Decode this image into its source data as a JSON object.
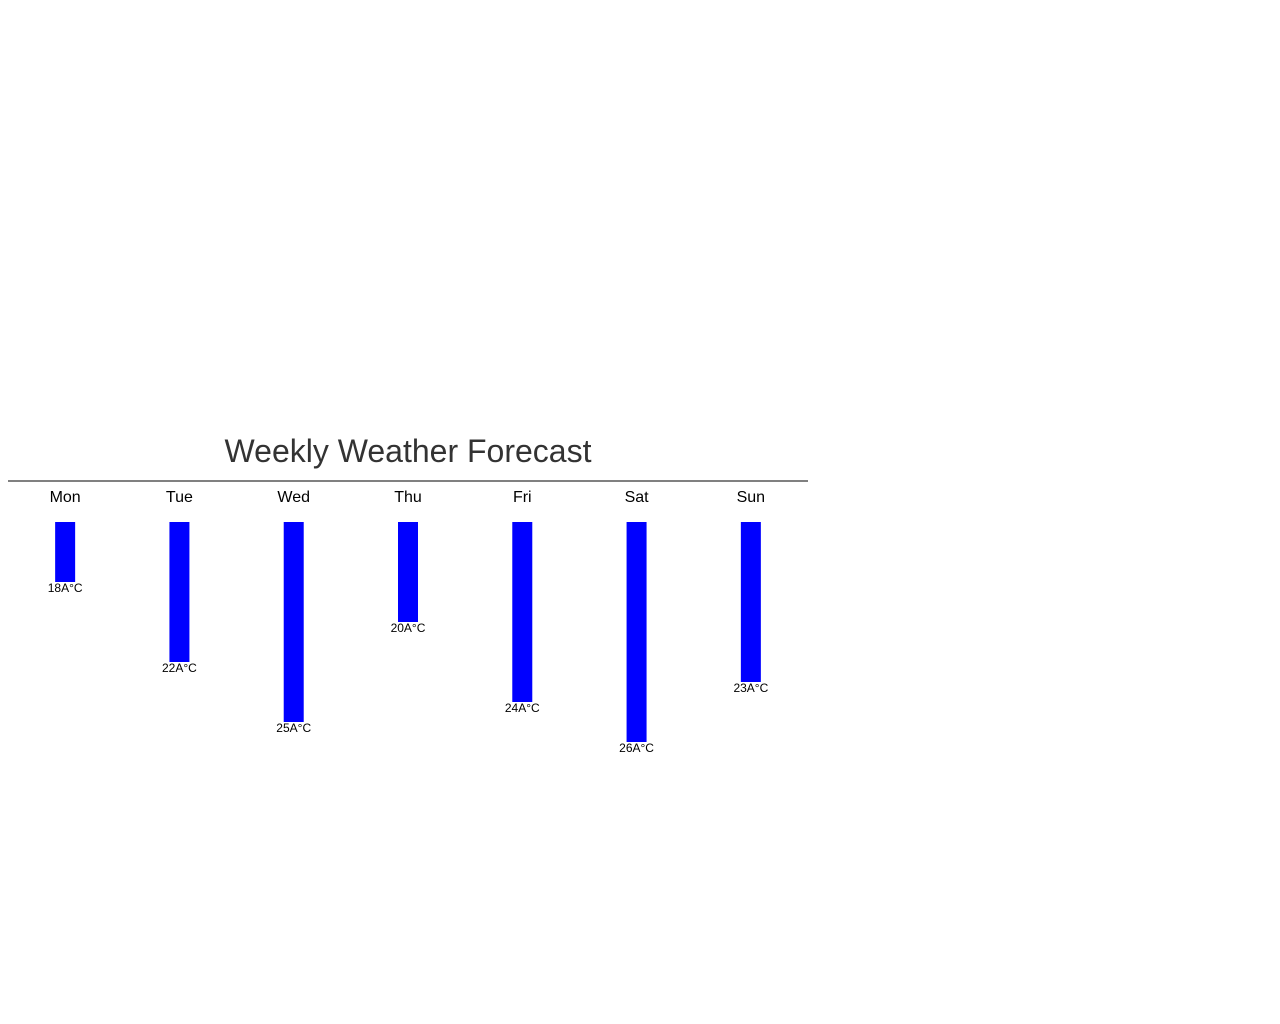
{
  "chart_data": {
    "type": "bar",
    "title": "Weekly Weather Forecast",
    "categories": [
      "Mon",
      "Tue",
      "Wed",
      "Thu",
      "Fri",
      "Sat",
      "Sun"
    ],
    "values": [
      18,
      22,
      25,
      20,
      24,
      26,
      23
    ],
    "value_labels": [
      "18A°C",
      "22A°C",
      "25A°C",
      "20A°C",
      "24A°C",
      "26A°C",
      "23A°C"
    ],
    "bar_color": "#0000ff",
    "orientation": "downward",
    "grid": false,
    "legend": "none"
  }
}
